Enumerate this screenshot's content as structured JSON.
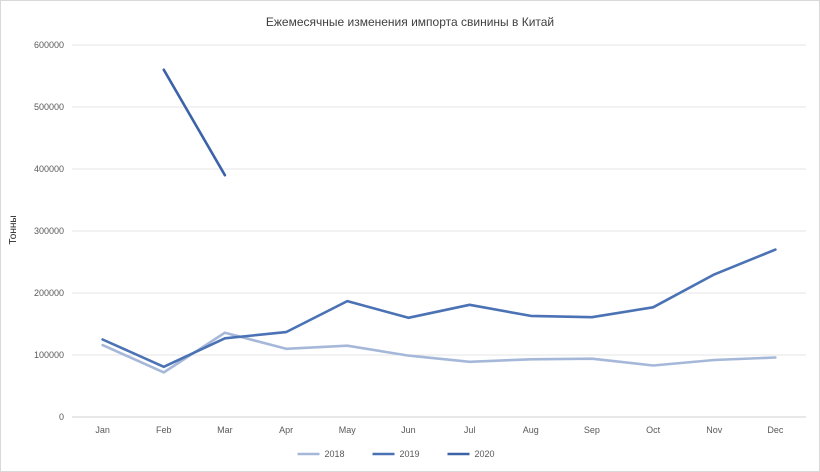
{
  "chart_data": {
    "type": "line",
    "title": "Ежемесячные изменения импорта свинины в Китай",
    "xlabel": "",
    "ylabel": "Тонны",
    "categories": [
      "Jan",
      "Feb",
      "Mar",
      "Apr",
      "May",
      "Jun",
      "Jul",
      "Aug",
      "Sep",
      "Oct",
      "Nov",
      "Dec"
    ],
    "y_ticks": [
      "0",
      "100000",
      "200000",
      "300000",
      "400000",
      "500000",
      "600000"
    ],
    "ylim": [
      0,
      600000
    ],
    "grid": true,
    "legend_position": "bottom",
    "series": [
      {
        "name": "2018",
        "color": "#a6b8d9",
        "values": [
          116000,
          72000,
          136000,
          110000,
          115000,
          99000,
          89000,
          93000,
          94000,
          83000,
          92000,
          96000
        ]
      },
      {
        "name": "2019",
        "color": "#4a72b4",
        "values": [
          125000,
          81000,
          127000,
          137000,
          187000,
          160000,
          181000,
          163000,
          161000,
          177000,
          230000,
          270000
        ]
      },
      {
        "name": "2020",
        "color": "#3c62a8",
        "values": [
          null,
          560000,
          390000,
          null,
          null,
          null,
          null,
          null,
          null,
          null,
          null,
          null
        ]
      }
    ]
  }
}
